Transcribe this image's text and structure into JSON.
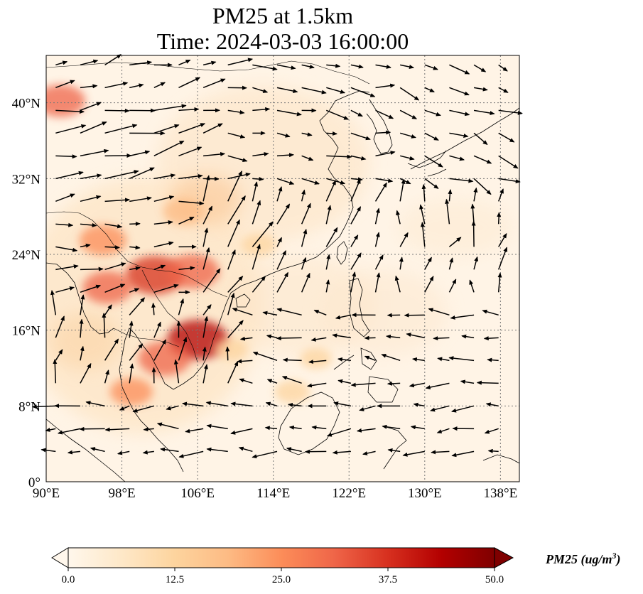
{
  "figure": {
    "title_line1": "PM25 at 1.5km",
    "title_line2": "Time: 2024-03-03 16:00:00"
  },
  "map": {
    "extent": {
      "lon_min": 90,
      "lon_max": 140,
      "lat_min": 0,
      "lat_max": 45
    },
    "projection": "PlateCarree",
    "gridlines": "dotted",
    "x_ticks": [
      {
        "lon": 90,
        "label": "90°E"
      },
      {
        "lon": 98,
        "label": "98°E"
      },
      {
        "lon": 106,
        "label": "106°E"
      },
      {
        "lon": 114,
        "label": "114°E"
      },
      {
        "lon": 122,
        "label": "122°E"
      },
      {
        "lon": 130,
        "label": "130°E"
      },
      {
        "lon": 138,
        "label": "138°E"
      }
    ],
    "y_ticks": [
      {
        "lat": 0,
        "label": "0°"
      },
      {
        "lat": 8,
        "label": "8°N"
      },
      {
        "lat": 16,
        "label": "16°N"
      },
      {
        "lat": 24,
        "label": "24°N"
      },
      {
        "lat": 32,
        "label": "32°N"
      },
      {
        "lat": 40,
        "label": "40°N"
      }
    ],
    "pm25_hotspots": [
      {
        "lon": 101.5,
        "lat": 21.8,
        "value": 40
      },
      {
        "lon": 105.5,
        "lat": 22.2,
        "value": 33
      },
      {
        "lon": 106.0,
        "lat": 15.0,
        "value": 42
      },
      {
        "lon": 102.5,
        "lat": 13.0,
        "value": 33
      },
      {
        "lon": 96.5,
        "lat": 20.5,
        "value": 30
      },
      {
        "lon": 96.0,
        "lat": 25.5,
        "value": 27
      },
      {
        "lon": 91.5,
        "lat": 40.2,
        "value": 30
      },
      {
        "lon": 99.0,
        "lat": 9.5,
        "value": 22
      },
      {
        "lon": 104.5,
        "lat": 28.5,
        "value": 20
      },
      {
        "lon": 112.5,
        "lat": 25.0,
        "value": 14
      },
      {
        "lon": 109.5,
        "lat": 14.0,
        "value": 12
      },
      {
        "lon": 116.0,
        "lat": 9.5,
        "value": 14
      },
      {
        "lon": 118.5,
        "lat": 13.0,
        "value": 10
      }
    ],
    "wind_vectors": "u/v wind arrows at 1.5km"
  },
  "colorbar": {
    "cmap": "OrRd",
    "colors": [
      "#fff7ec",
      "#fee8c8",
      "#fdd49e",
      "#fdbb84",
      "#fc8d59",
      "#ef6548",
      "#d7301f",
      "#b30000",
      "#7f0000"
    ],
    "extend": "both",
    "vmin": 0.0,
    "vmax": 50.0,
    "ticks": [
      "0.0",
      "12.5",
      "25.0",
      "37.5",
      "50.0"
    ],
    "label": "PM25 (ug/m",
    "label_sup": "3",
    "label_close": ")"
  }
}
